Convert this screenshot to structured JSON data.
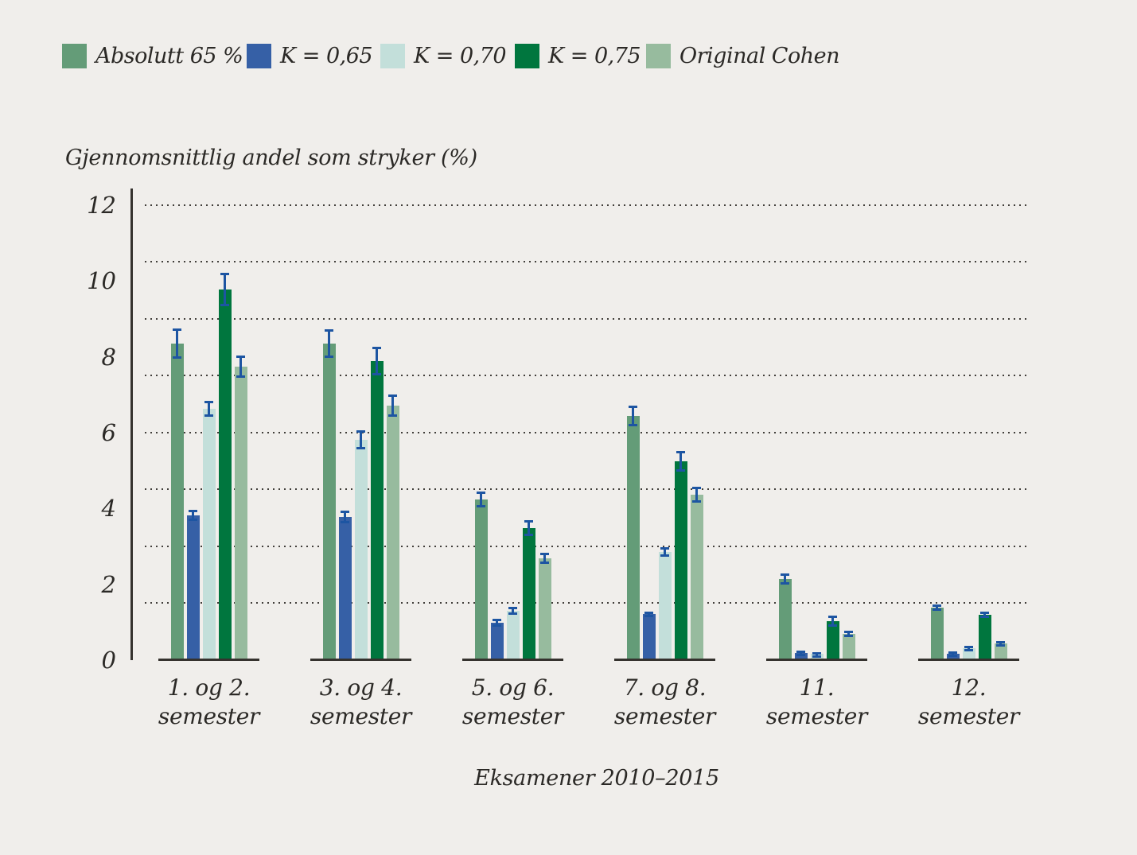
{
  "legend": {
    "items": [
      {
        "label": "Absolutt 65 %",
        "color": "#649c78"
      },
      {
        "label": "K = 0,65",
        "color": "#3660a6"
      },
      {
        "label": "K = 0,70",
        "color": "#c3dfda"
      },
      {
        "label": "K = 0,75",
        "color": "#00763e"
      },
      {
        "label": "Original Cohen",
        "color": "#97bb9e"
      }
    ]
  },
  "chart_data": {
    "type": "bar",
    "title": "",
    "ylabel": "Gjennomsnittlig andel som stryker (%)",
    "xlabel": "Eksamener 2010–2015",
    "categories": [
      "1. og 2.\nsemester",
      "3. og 4.\nsemester",
      "5. og 6.\nsemester",
      "7. og 8.\nsemester",
      "11.\nsemester",
      "12.\nsemester"
    ],
    "yticks": [
      0,
      2,
      4,
      6,
      8,
      10,
      12
    ],
    "gridline_values": [
      1.5,
      3,
      4.5,
      6,
      7.5,
      9,
      10.5,
      12
    ],
    "ylim": [
      0,
      12.4
    ],
    "grid": "dotted",
    "legend_position": "top",
    "error_bar_color": "#1d55a2",
    "series": [
      {
        "name": "Absolutt 65 %",
        "color": "#649c78",
        "values": [
          8.3,
          8.3,
          4.2,
          6.4,
          2.1,
          1.35
        ],
        "errors": [
          0.4,
          0.38,
          0.22,
          0.28,
          0.14,
          0.08
        ]
      },
      {
        "name": "K = 0,65",
        "color": "#3660a6",
        "values": [
          3.77,
          3.73,
          0.95,
          1.18,
          0.15,
          0.12
        ],
        "errors": [
          0.15,
          0.16,
          0.11,
          0.07,
          0.06,
          0.07
        ]
      },
      {
        "name": "K = 0,70",
        "color": "#c3dfda",
        "values": [
          6.58,
          5.77,
          1.26,
          2.82,
          0.12,
          0.27
        ],
        "errors": [
          0.22,
          0.25,
          0.11,
          0.13,
          0.05,
          0.07
        ]
      },
      {
        "name": "K = 0,75",
        "color": "#00763e",
        "values": [
          9.73,
          7.84,
          3.44,
          5.2,
          0.98,
          1.16
        ],
        "errors": [
          0.45,
          0.38,
          0.2,
          0.27,
          0.14,
          0.09
        ]
      },
      {
        "name": "Original Cohen",
        "color": "#97bb9e",
        "values": [
          7.7,
          6.68,
          2.65,
          4.33,
          0.65,
          0.4
        ],
        "errors": [
          0.3,
          0.29,
          0.15,
          0.2,
          0.09,
          0.07
        ]
      }
    ]
  }
}
